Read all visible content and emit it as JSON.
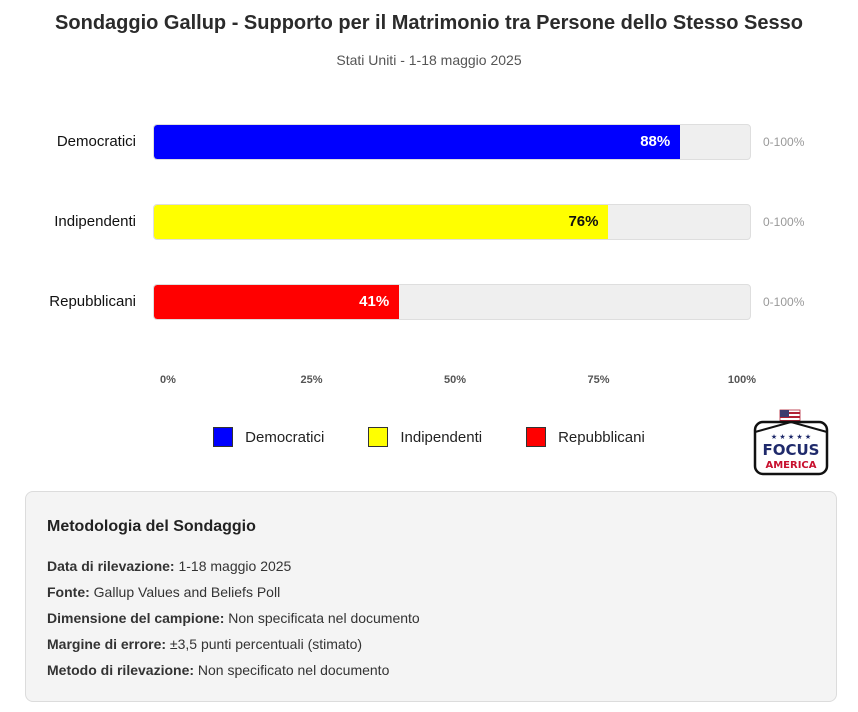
{
  "chart_data": {
    "type": "bar",
    "orientation": "horizontal",
    "title": "Sondaggio Gallup - Supporto per il Matrimonio tra Persone dello Stesso Sesso",
    "subtitle": "Stati Uniti - 1-18 maggio 2025",
    "categories": [
      "Democratici",
      "Indipendenti",
      "Repubblicani"
    ],
    "values": [
      88,
      76,
      41
    ],
    "value_labels": [
      "88%",
      "76%",
      "41%"
    ],
    "range_labels": [
      "0-100%",
      "0-100%",
      "0-100%"
    ],
    "colors": [
      "#0000ff",
      "#ffff00",
      "#ff0000"
    ],
    "label_colors": [
      "#ffffff",
      "#111111",
      "#ffffff"
    ],
    "xlim": [
      0,
      100
    ],
    "x_ticks": [
      0,
      25,
      50,
      75,
      100
    ],
    "x_tick_labels": [
      "0%",
      "25%",
      "50%",
      "75%",
      "100%"
    ],
    "legend": {
      "placement": "bottom-center",
      "entries": [
        "Democratici",
        "Indipendenti",
        "Repubblicani"
      ]
    },
    "grid": false
  },
  "logo": {
    "line1": "FOCUS",
    "line2": "AMERICA"
  },
  "methodology": {
    "title": "Metodologia del Sondaggio",
    "items": [
      {
        "label": "Data di rilevazione:",
        "value": " 1-18 maggio 2025"
      },
      {
        "label": "Fonte:",
        "value": " Gallup Values and Beliefs Poll"
      },
      {
        "label": "Dimensione del campione:",
        "value": " Non specificata nel documento"
      },
      {
        "label": "Margine di errore:",
        "value": " ±3,5 punti percentuali (stimato)"
      },
      {
        "label": "Metodo di rilevazione:",
        "value": " Non specificato nel documento"
      }
    ]
  }
}
